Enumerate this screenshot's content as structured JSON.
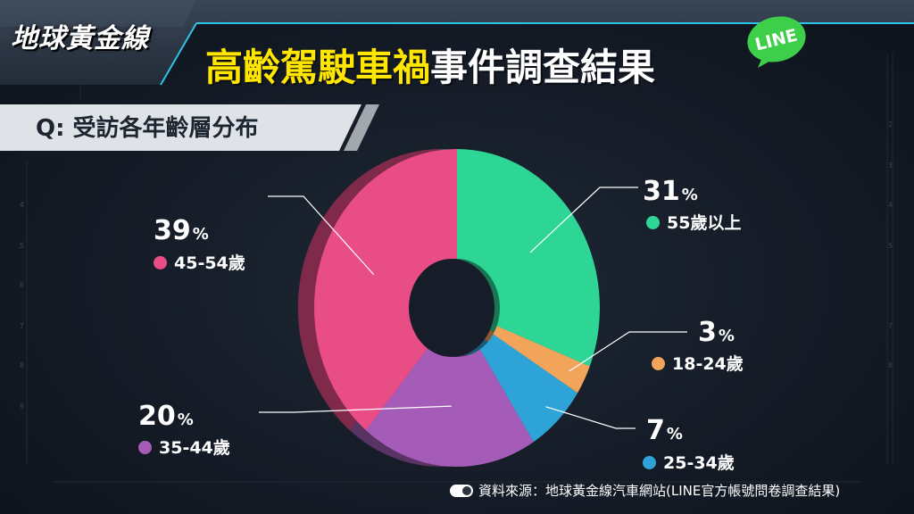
{
  "header": {
    "logo_text": "地球黃金線",
    "title_highlight": "高齡駕駛車禍",
    "title_rest": "事件調查結果",
    "badge_text": "LINE"
  },
  "question": "Q: 受訪各年齡層分布",
  "source": "資料來源：地球黃金線汽車網站(LINE官方帳號問卷調查結果)",
  "colors": {
    "55+": "#2ed696",
    "18-24": "#f2a45a",
    "25-34": "#2ea3d8",
    "35-44": "#a45cb8",
    "45-54": "#e84d86",
    "title_highlight": "#ffe600",
    "line_green": "#3ecf4a"
  },
  "chart_data": {
    "type": "pie",
    "title": "Q: 受訪各年齡層分布",
    "series": [
      {
        "name": "55歲以上",
        "value": 31,
        "label": "31",
        "color": "#2ed696"
      },
      {
        "name": "18-24歲",
        "value": 3,
        "label": "3",
        "color": "#f2a45a"
      },
      {
        "name": "25-34歲",
        "value": 7,
        "label": "7",
        "color": "#2ea3d8"
      },
      {
        "name": "35-44歲",
        "value": 20,
        "label": "20",
        "color": "#a45cb8"
      },
      {
        "name": "45-54歲",
        "value": 39,
        "label": "39",
        "color": "#e84d86"
      }
    ],
    "unit": "%",
    "donut": true
  }
}
